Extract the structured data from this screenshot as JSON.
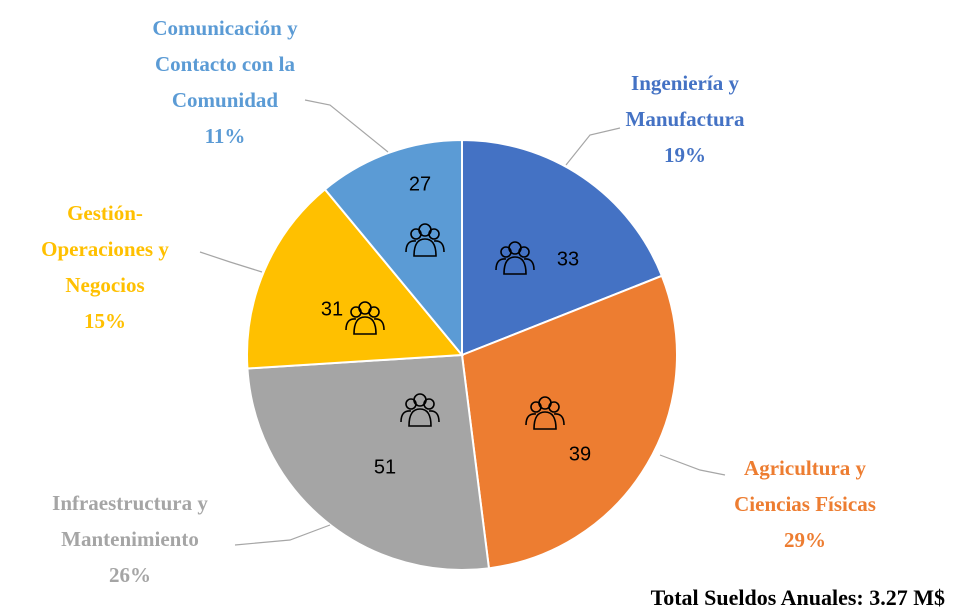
{
  "chart_data": {
    "type": "pie",
    "categories": [
      "Ingeniería y\nManufactura",
      "Agricultura y\nCiencias Físicas",
      "Infraestructura y\nMantenimiento",
      "Gestión-\nOperaciones y\nNegocios",
      "Comunicación y\nContacto con la\nComunidad"
    ],
    "values": [
      19,
      29,
      26,
      15,
      11
    ],
    "value_labels": [
      "19%",
      "29%",
      "26%",
      "15%",
      "11%"
    ],
    "counts": [
      33,
      39,
      51,
      31,
      27
    ],
    "colors": [
      "#4472c4",
      "#ed7d31",
      "#a5a5a5",
      "#ffc000",
      "#5b9bd5"
    ],
    "annotation": "Total Sueldos Anuales: 3.27 M$"
  }
}
